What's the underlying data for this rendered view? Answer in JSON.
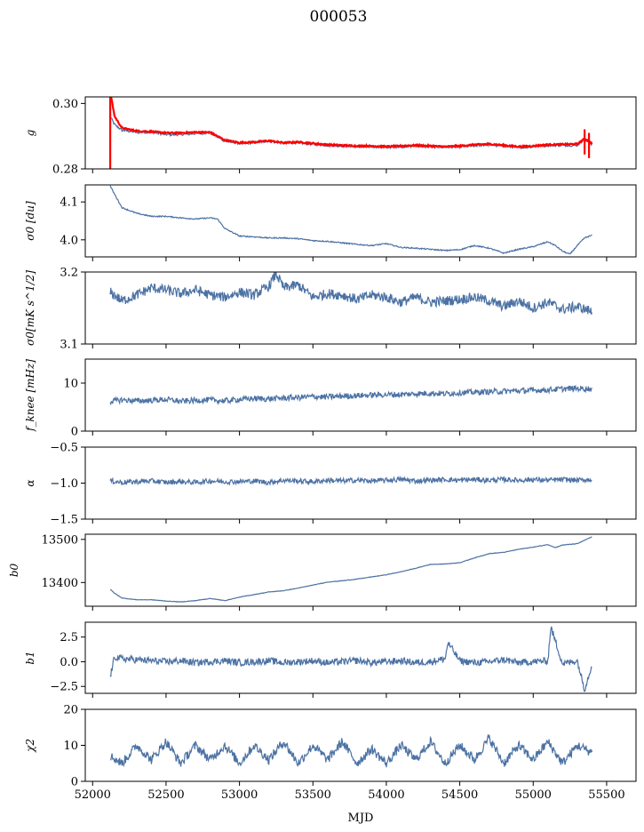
{
  "figure": {
    "title": "000053",
    "xlabel": "MJD"
  },
  "colors": {
    "series": "#4c72a4",
    "overlay": "#ff0000",
    "axes": "#000000"
  },
  "chart_data": [
    {
      "type": "line",
      "ylabel": "g",
      "xlim": [
        51950,
        55700
      ],
      "ylim": [
        0.28,
        0.302
      ],
      "yticks": [
        0.28,
        0.3
      ],
      "ytick_labels": [
        "0.28",
        "0.30"
      ],
      "series": [
        {
          "role": "main",
          "x": [
            52120,
            52150,
            52200,
            52300,
            52400,
            52500,
            52600,
            52700,
            52800,
            52900,
            53000,
            53100,
            53200,
            53300,
            53400,
            53500,
            53600,
            53700,
            53800,
            53900,
            54000,
            54100,
            54200,
            54300,
            54400,
            54500,
            54600,
            54700,
            54800,
            54900,
            55000,
            55100,
            55200,
            55300,
            55350,
            55400
          ],
          "y": [
            0.296,
            0.2935,
            0.2918,
            0.2912,
            0.2912,
            0.2905,
            0.2905,
            0.2908,
            0.291,
            0.2885,
            0.2878,
            0.288,
            0.2885,
            0.2878,
            0.288,
            0.2875,
            0.2872,
            0.287,
            0.2868,
            0.2868,
            0.2866,
            0.2868,
            0.287,
            0.2868,
            0.2866,
            0.2868,
            0.287,
            0.2874,
            0.287,
            0.2865,
            0.2868,
            0.2872,
            0.2872,
            0.2872,
            0.2892,
            0.2875
          ]
        },
        {
          "role": "overlay",
          "x": [
            52120,
            52150,
            52200,
            52300,
            52400,
            52500,
            52600,
            52700,
            52800,
            52900,
            53000,
            53100,
            53200,
            53300,
            53400,
            53500,
            53600,
            53700,
            53800,
            53900,
            54000,
            54100,
            54200,
            54300,
            54400,
            54500,
            54600,
            54700,
            54800,
            54900,
            55000,
            55100,
            55200,
            55300,
            55350,
            55400
          ],
          "y": [
            0.3035,
            0.296,
            0.2925,
            0.2916,
            0.2914,
            0.291,
            0.291,
            0.2912,
            0.2912,
            0.2888,
            0.288,
            0.2882,
            0.2886,
            0.288,
            0.2882,
            0.2878,
            0.2874,
            0.2872,
            0.287,
            0.287,
            0.2868,
            0.287,
            0.2872,
            0.287,
            0.2868,
            0.287,
            0.2874,
            0.2876,
            0.2872,
            0.2868,
            0.287,
            0.2874,
            0.2875,
            0.2876,
            0.2892,
            0.2878
          ]
        }
      ]
    },
    {
      "type": "line",
      "ylabel": "σ0 [du]",
      "xlim": [
        51950,
        55700
      ],
      "ylim": [
        3.955,
        4.145
      ],
      "yticks": [
        4.0,
        4.1
      ],
      "ytick_labels": [
        "4.0",
        "4.1"
      ],
      "series": [
        {
          "role": "main",
          "x": [
            52120,
            52150,
            52200,
            52300,
            52400,
            52500,
            52600,
            52700,
            52800,
            52850,
            52900,
            53000,
            53100,
            53200,
            53300,
            53400,
            53500,
            53600,
            53700,
            53800,
            53900,
            54000,
            54100,
            54200,
            54300,
            54400,
            54500,
            54600,
            54700,
            54800,
            54900,
            55000,
            55100,
            55150,
            55200,
            55250,
            55300,
            55350,
            55400
          ],
          "y": [
            4.142,
            4.12,
            4.085,
            4.07,
            4.062,
            4.062,
            4.058,
            4.055,
            4.058,
            4.055,
            4.03,
            4.01,
            4.008,
            4.005,
            4.005,
            4.003,
            3.998,
            3.996,
            3.992,
            3.988,
            3.985,
            3.99,
            3.98,
            3.978,
            3.975,
            3.972,
            3.974,
            3.985,
            3.978,
            3.965,
            3.975,
            3.982,
            3.995,
            3.985,
            3.97,
            3.962,
            3.985,
            4.005,
            4.012
          ]
        }
      ]
    },
    {
      "type": "line",
      "ylabel": "σ0[mK s^1/2]",
      "xlim": [
        51950,
        55700
      ],
      "ylim": [
        3.1,
        3.2
      ],
      "yticks": [
        3.1,
        3.2
      ],
      "ytick_labels": [
        "3.1",
        "3.2"
      ],
      "series": [
        {
          "role": "main",
          "x": [
            52120,
            52200,
            52300,
            52400,
            52500,
            52600,
            52700,
            52800,
            52900,
            53000,
            53100,
            53200,
            53250,
            53300,
            53400,
            53500,
            53600,
            53700,
            53800,
            53900,
            54000,
            54100,
            54200,
            54300,
            54400,
            54500,
            54600,
            54700,
            54800,
            54900,
            55000,
            55100,
            55200,
            55300,
            55400
          ],
          "y": [
            3.172,
            3.16,
            3.168,
            3.178,
            3.175,
            3.17,
            3.175,
            3.168,
            3.165,
            3.172,
            3.168,
            3.18,
            3.198,
            3.178,
            3.182,
            3.165,
            3.17,
            3.168,
            3.162,
            3.168,
            3.165,
            3.158,
            3.165,
            3.158,
            3.16,
            3.162,
            3.165,
            3.16,
            3.152,
            3.16,
            3.15,
            3.158,
            3.148,
            3.152,
            3.145
          ]
        }
      ]
    },
    {
      "type": "line",
      "ylabel": "f_knee [mHz]",
      "xlim": [
        51950,
        55700
      ],
      "ylim": [
        0,
        15
      ],
      "yticks": [
        0,
        10
      ],
      "ytick_labels": [
        "0",
        "10"
      ],
      "series": [
        {
          "role": "main",
          "x": [
            52120,
            52200,
            52300,
            52400,
            52500,
            52600,
            52700,
            52800,
            52900,
            53000,
            53100,
            53200,
            53300,
            53400,
            53500,
            53600,
            53700,
            53800,
            53900,
            54000,
            54100,
            54200,
            54300,
            54400,
            54500,
            54600,
            54700,
            54800,
            54900,
            55000,
            55100,
            55200,
            55300,
            55400
          ],
          "y": [
            6.2,
            6.5,
            6.3,
            6.4,
            6.6,
            6.2,
            6.4,
            6.5,
            6.3,
            6.6,
            6.8,
            6.7,
            6.9,
            7.0,
            7.2,
            7.1,
            7.3,
            7.4,
            7.5,
            7.6,
            7.6,
            7.8,
            7.9,
            7.8,
            8.0,
            8.1,
            8.2,
            8.3,
            8.4,
            8.5,
            8.6,
            8.8,
            8.9,
            8.8
          ]
        }
      ]
    },
    {
      "type": "line",
      "ylabel": "α",
      "xlim": [
        51950,
        55700
      ],
      "ylim": [
        -1.5,
        -0.5
      ],
      "yticks": [
        -1.5,
        -1.0,
        -0.5
      ],
      "ytick_labels": [
        "−1.5",
        "−1.0",
        "−0.5"
      ],
      "series": [
        {
          "role": "main",
          "x": [
            52120,
            52200,
            52300,
            52400,
            52500,
            52600,
            52700,
            52800,
            52900,
            53000,
            53100,
            53200,
            53300,
            53400,
            53500,
            53600,
            53700,
            53800,
            53900,
            54000,
            54100,
            54200,
            54300,
            54400,
            54500,
            54600,
            54700,
            54800,
            54900,
            55000,
            55100,
            55200,
            55300,
            55400
          ],
          "y": [
            -0.97,
            -0.99,
            -0.98,
            -0.97,
            -0.99,
            -0.98,
            -0.99,
            -0.97,
            -0.98,
            -0.98,
            -0.97,
            -0.99,
            -0.96,
            -0.97,
            -0.98,
            -0.96,
            -0.97,
            -0.96,
            -0.97,
            -0.96,
            -0.95,
            -0.97,
            -0.96,
            -0.95,
            -0.96,
            -0.95,
            -0.96,
            -0.95,
            -0.96,
            -0.95,
            -0.96,
            -0.95,
            -0.96,
            -0.95
          ]
        }
      ]
    },
    {
      "type": "line",
      "ylabel": "b0",
      "xlim": [
        51950,
        55700
      ],
      "ylim": [
        13345,
        13512
      ],
      "yticks": [
        13400,
        13500
      ],
      "ytick_labels": [
        "13400",
        "13500"
      ],
      "series": [
        {
          "role": "main",
          "x": [
            52120,
            52150,
            52200,
            52300,
            52400,
            52500,
            52600,
            52700,
            52800,
            52900,
            53000,
            53100,
            53200,
            53300,
            53400,
            53500,
            53600,
            53700,
            53800,
            53900,
            54000,
            54100,
            54200,
            54300,
            54400,
            54500,
            54600,
            54700,
            54800,
            54900,
            55000,
            55100,
            55150,
            55200,
            55300,
            55400
          ],
          "y": [
            13384,
            13375,
            13364,
            13360,
            13360,
            13357,
            13355,
            13358,
            13363,
            13358,
            13366,
            13372,
            13378,
            13381,
            13387,
            13394,
            13401,
            13404,
            13408,
            13413,
            13418,
            13425,
            13433,
            13442,
            13443,
            13446,
            13457,
            13467,
            13470,
            13477,
            13482,
            13488,
            13481,
            13487,
            13490,
            13506
          ]
        }
      ]
    },
    {
      "type": "line",
      "ylabel": "b1",
      "xlim": [
        51950,
        55700
      ],
      "ylim": [
        -3.2,
        4.0
      ],
      "yticks": [
        -2.5,
        0.0,
        2.5
      ],
      "ytick_labels": [
        "−2.5",
        "0.0",
        "2.5"
      ],
      "series": [
        {
          "role": "main",
          "x": [
            52120,
            52150,
            52200,
            52300,
            52400,
            52500,
            52600,
            52700,
            52800,
            52900,
            53000,
            53100,
            53200,
            53300,
            53400,
            53500,
            53600,
            53700,
            53800,
            53900,
            54000,
            54100,
            54200,
            54300,
            54400,
            54420,
            54500,
            54600,
            54700,
            54800,
            54900,
            55000,
            55100,
            55120,
            55200,
            55300,
            55350,
            55400
          ],
          "y": [
            -1.5,
            0.5,
            0.3,
            0.2,
            0.1,
            0.0,
            0.1,
            -0.1,
            0.0,
            0.1,
            -0.1,
            0.0,
            0.1,
            -0.1,
            0.0,
            0.1,
            -0.1,
            0.0,
            0.1,
            -0.1,
            0.0,
            0.1,
            -0.1,
            0.0,
            0.3,
            1.9,
            0.1,
            -0.1,
            0.0,
            0.2,
            -0.1,
            0.0,
            0.1,
            3.5,
            -0.2,
            0.1,
            -2.8,
            -0.3
          ]
        }
      ]
    },
    {
      "type": "line",
      "ylabel": "χ2",
      "xlim": [
        51950,
        55700
      ],
      "ylim": [
        0,
        20
      ],
      "yticks": [
        0,
        10,
        20
      ],
      "ytick_labels": [
        "0",
        "10",
        "20"
      ],
      "series": [
        {
          "role": "main",
          "x": [
            52120,
            52200,
            52300,
            52400,
            52500,
            52600,
            52700,
            52800,
            52900,
            53000,
            53100,
            53200,
            53300,
            53400,
            53500,
            53600,
            53700,
            53800,
            53900,
            54000,
            54100,
            54200,
            54300,
            54400,
            54500,
            54600,
            54700,
            54800,
            54900,
            55000,
            55100,
            55200,
            55300,
            55400
          ],
          "y": [
            7,
            5,
            10,
            6,
            11,
            5,
            10,
            6,
            10,
            5,
            10,
            6,
            11,
            5,
            10,
            6,
            11,
            5,
            9,
            5,
            10,
            6,
            11,
            5,
            10,
            6,
            12,
            5,
            10,
            6,
            11,
            5,
            10,
            8
          ]
        }
      ],
      "xticks": [
        52000,
        52500,
        53000,
        53500,
        54000,
        54500,
        55000,
        55500
      ],
      "xtick_labels": [
        "52000",
        "52500",
        "53000",
        "53500",
        "54000",
        "54500",
        "55000",
        "55500"
      ]
    }
  ]
}
